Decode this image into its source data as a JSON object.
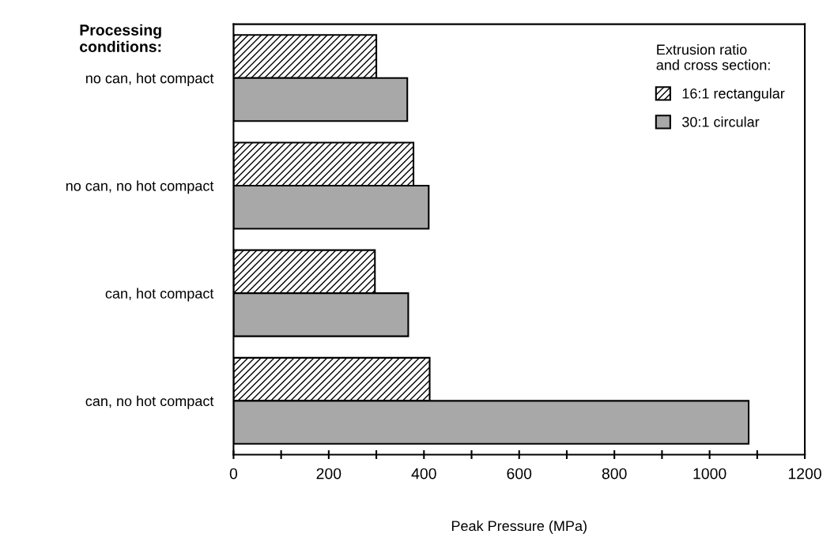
{
  "chart_data": {
    "type": "bar",
    "orientation": "horizontal",
    "xlabel": "Peak Pressure (MPa)",
    "ylabel": "Processing\nconditions:",
    "legend_title": "Extrusion ratio\nand cross section:",
    "legend": "top right",
    "categories": [
      "no can, hot compact",
      "no can, no hot compact",
      "can, hot compact",
      "can, no hot compact"
    ],
    "series": [
      {
        "name": "16:1 rectangular",
        "color": "#000000",
        "values": [
          300,
          378,
          297,
          412
        ]
      },
      {
        "name": "30:1 circular",
        "color": "#a8a8a8",
        "values": [
          365,
          410,
          367,
          1082
        ]
      }
    ],
    "xlim": [
      0,
      1200
    ],
    "xticks": [
      0,
      {
        "value": 100,
        "label": null
      },
      200,
      {
        "value": 300,
        "label": null
      },
      400,
      {
        "value": 500,
        "label": null
      },
      600,
      {
        "value": 700,
        "label": null
      },
      800,
      {
        "value": 900,
        "label": null
      },
      1000,
      {
        "value": 1100,
        "label": null
      },
      1200
    ]
  }
}
